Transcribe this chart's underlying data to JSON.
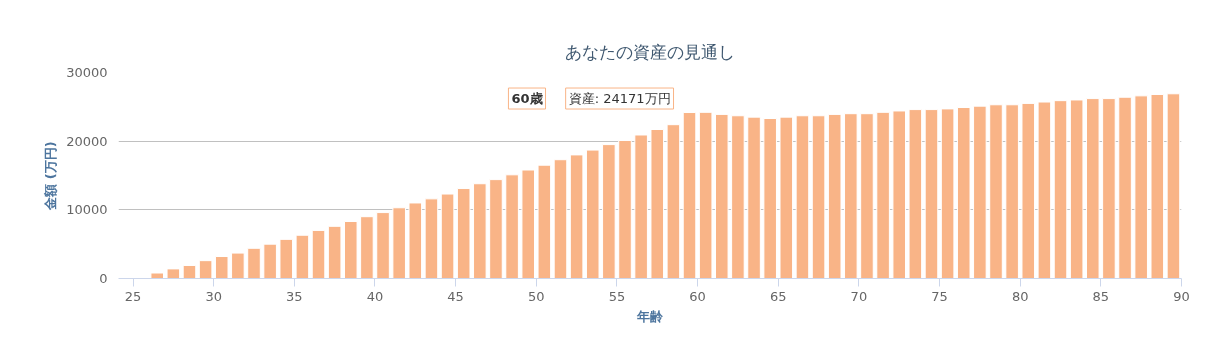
{
  "chart_data": {
    "type": "bar",
    "title": "あなたの資産の見通し",
    "xlabel": "年齢",
    "ylabel": "金額 (万円)",
    "x": [
      26.5,
      27.5,
      28.5,
      29.5,
      30.5,
      31.5,
      32.5,
      33.5,
      34.5,
      35.5,
      36.5,
      37.5,
      38.5,
      39.5,
      40.5,
      41.5,
      42.5,
      43.5,
      44.5,
      45.5,
      46.5,
      47.5,
      48.5,
      49.5,
      50.5,
      51.5,
      52.5,
      53.5,
      54.5,
      55.5,
      56.5,
      57.5,
      58.5,
      59.5,
      60.5,
      61.5,
      62.5,
      63.5,
      64.5,
      65.5,
      66.5,
      67.5,
      68.5,
      69.5,
      70.5,
      71.5,
      72.5,
      73.5,
      74.5,
      75.5,
      76.5,
      77.5,
      78.5,
      79.5,
      80.5,
      81.5,
      82.5,
      83.5,
      84.5,
      85.5,
      86.5,
      87.5,
      88.5,
      89.5
    ],
    "values": [
      800,
      1400,
      1900,
      2600,
      3200,
      3700,
      4400,
      5000,
      5700,
      6300,
      7000,
      7600,
      8300,
      9000,
      9600,
      10300,
      11000,
      11600,
      12300,
      13100,
      13800,
      14400,
      15100,
      15800,
      16500,
      17300,
      18000,
      18700,
      19500,
      20100,
      20900,
      21700,
      22400,
      24171,
      24200,
      23900,
      23700,
      23500,
      23300,
      23500,
      23700,
      23700,
      23900,
      24000,
      24000,
      24200,
      24400,
      24600,
      24600,
      24700,
      24900,
      25100,
      25300,
      25300,
      25500,
      25700,
      25900,
      26000,
      26200,
      26200,
      26400,
      26600,
      26800,
      26900
    ],
    "color": "#f9b487",
    "xlim": [
      24.1,
      90
    ],
    "xticks": [
      25,
      30,
      35,
      40,
      45,
      50,
      55,
      60,
      65,
      70,
      75,
      80,
      85,
      90
    ],
    "ylim": [
      0,
      30000
    ],
    "yticks": [
      0,
      10000,
      20000,
      30000
    ],
    "grid": "y",
    "annotations": [
      "60歳",
      {
        "text": "資産: 24171万円",
        "x": 59.5,
        "y": 24171
      }
    ]
  }
}
